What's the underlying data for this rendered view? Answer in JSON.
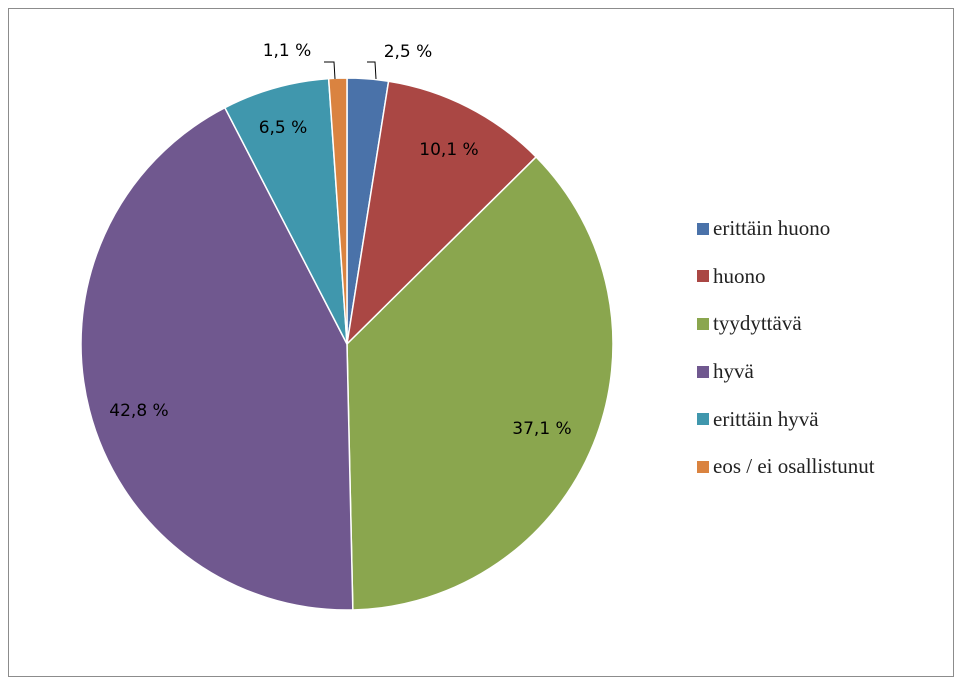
{
  "chart_data": {
    "type": "pie",
    "title": "",
    "categories": [
      "erittäin huono",
      "huono",
      "tyydyttävä",
      "hyvä",
      "erittäin hyvä",
      "eos / ei osallistunut"
    ],
    "values": [
      2.5,
      10.1,
      37.1,
      42.8,
      6.5,
      1.1
    ],
    "value_labels": [
      "2,5 %",
      "10,1 %",
      "37,1 %",
      "42,8 %",
      "6,5 %",
      "1,1 %"
    ],
    "colors": [
      "#4a72a9",
      "#aa4744",
      "#8aa64e",
      "#70588f",
      "#4097ad",
      "#da8340"
    ],
    "start": "12 o'clock, clockwise",
    "legend_position": "right"
  }
}
